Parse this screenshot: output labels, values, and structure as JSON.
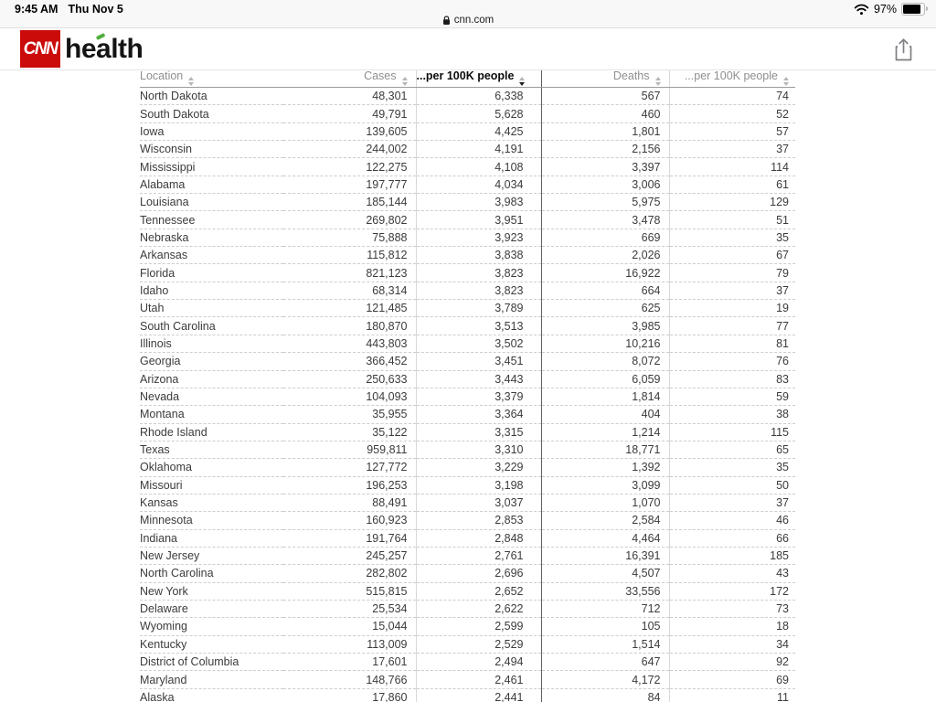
{
  "status_bar": {
    "time": "9:45 AM",
    "date": "Thu Nov 5",
    "battery_percent": "97%",
    "icons": [
      "wifi-icon",
      "battery-icon"
    ]
  },
  "address_bar": {
    "url": "cnn.com",
    "icon": "lock-icon"
  },
  "site_header": {
    "brand": "CNN",
    "section": "health",
    "brand_color": "#cb0b0a",
    "leaf_color": "#4faf3c",
    "share_icon": "share-icon"
  },
  "table": {
    "columns": [
      {
        "label": "Location",
        "sorted": false
      },
      {
        "label": "Cases",
        "sorted": false
      },
      {
        "label": "...per 100K people",
        "sorted": true,
        "sort_direction": "desc"
      },
      {
        "label": "Deaths",
        "sorted": false
      },
      {
        "label": "...per 100K people",
        "sorted": false
      }
    ],
    "rows": [
      [
        "North Dakota",
        "48,301",
        "6,338",
        "567",
        "74"
      ],
      [
        "South Dakota",
        "49,791",
        "5,628",
        "460",
        "52"
      ],
      [
        "Iowa",
        "139,605",
        "4,425",
        "1,801",
        "57"
      ],
      [
        "Wisconsin",
        "244,002",
        "4,191",
        "2,156",
        "37"
      ],
      [
        "Mississippi",
        "122,275",
        "4,108",
        "3,397",
        "114"
      ],
      [
        "Alabama",
        "197,777",
        "4,034",
        "3,006",
        "61"
      ],
      [
        "Louisiana",
        "185,144",
        "3,983",
        "5,975",
        "129"
      ],
      [
        "Tennessee",
        "269,802",
        "3,951",
        "3,478",
        "51"
      ],
      [
        "Nebraska",
        "75,888",
        "3,923",
        "669",
        "35"
      ],
      [
        "Arkansas",
        "115,812",
        "3,838",
        "2,026",
        "67"
      ],
      [
        "Florida",
        "821,123",
        "3,823",
        "16,922",
        "79"
      ],
      [
        "Idaho",
        "68,314",
        "3,823",
        "664",
        "37"
      ],
      [
        "Utah",
        "121,485",
        "3,789",
        "625",
        "19"
      ],
      [
        "South Carolina",
        "180,870",
        "3,513",
        "3,985",
        "77"
      ],
      [
        "Illinois",
        "443,803",
        "3,502",
        "10,216",
        "81"
      ],
      [
        "Georgia",
        "366,452",
        "3,451",
        "8,072",
        "76"
      ],
      [
        "Arizona",
        "250,633",
        "3,443",
        "6,059",
        "83"
      ],
      [
        "Nevada",
        "104,093",
        "3,379",
        "1,814",
        "59"
      ],
      [
        "Montana",
        "35,955",
        "3,364",
        "404",
        "38"
      ],
      [
        "Rhode Island",
        "35,122",
        "3,315",
        "1,214",
        "115"
      ],
      [
        "Texas",
        "959,811",
        "3,310",
        "18,771",
        "65"
      ],
      [
        "Oklahoma",
        "127,772",
        "3,229",
        "1,392",
        "35"
      ],
      [
        "Missouri",
        "196,253",
        "3,198",
        "3,099",
        "50"
      ],
      [
        "Kansas",
        "88,491",
        "3,037",
        "1,070",
        "37"
      ],
      [
        "Minnesota",
        "160,923",
        "2,853",
        "2,584",
        "46"
      ],
      [
        "Indiana",
        "191,764",
        "2,848",
        "4,464",
        "66"
      ],
      [
        "New Jersey",
        "245,257",
        "2,761",
        "16,391",
        "185"
      ],
      [
        "North Carolina",
        "282,802",
        "2,696",
        "4,507",
        "43"
      ],
      [
        "New York",
        "515,815",
        "2,652",
        "33,556",
        "172"
      ],
      [
        "Delaware",
        "25,534",
        "2,622",
        "712",
        "73"
      ],
      [
        "Wyoming",
        "15,044",
        "2,599",
        "105",
        "18"
      ],
      [
        "Kentucky",
        "113,009",
        "2,529",
        "1,514",
        "34"
      ],
      [
        "District of Columbia",
        "17,601",
        "2,494",
        "647",
        "92"
      ],
      [
        "Maryland",
        "148,766",
        "2,461",
        "4,172",
        "69"
      ],
      [
        "Alaska",
        "17,860",
        "2,441",
        "84",
        "11"
      ]
    ]
  }
}
